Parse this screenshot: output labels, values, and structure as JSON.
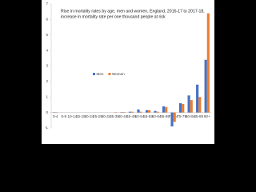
{
  "chart_data": {
    "type": "bar",
    "title": [
      "Rise in mortality rates by age, men and women, England, 2016-17 to 2017-18,",
      "increase in mortality rate per one thousand people at risk"
    ],
    "categories": [
      "0-4",
      "5-9",
      "10-14",
      "15-19",
      "20-24",
      "25-29",
      "30-34",
      "35-39",
      "40-44",
      "45-49",
      "50-54",
      "55-59",
      "60-64",
      "65-69",
      "70-74",
      "75-79",
      "80-84",
      "85-89",
      "90+"
    ],
    "series": [
      {
        "name": "Men",
        "color": "#4472c4",
        "values": [
          0.02,
          0,
          0,
          0,
          0,
          0,
          0,
          0,
          0.02,
          0.05,
          0.2,
          0.15,
          0.1,
          0.4,
          -0.9,
          0.6,
          1.1,
          1.8,
          3.4
        ]
      },
      {
        "name": "Women",
        "color": "#ed7d31",
        "values": [
          -0.03,
          0,
          0,
          0,
          0,
          0,
          0,
          0.02,
          0.03,
          0.05,
          0.05,
          0.15,
          0.05,
          0.35,
          -0.6,
          0.55,
          0.8,
          1.0,
          6.4
        ]
      }
    ],
    "ylim": [
      -1,
      7
    ],
    "yticks": [
      -1,
      0,
      1,
      2,
      3,
      4,
      5,
      6,
      7
    ],
    "legend": "center-left"
  }
}
